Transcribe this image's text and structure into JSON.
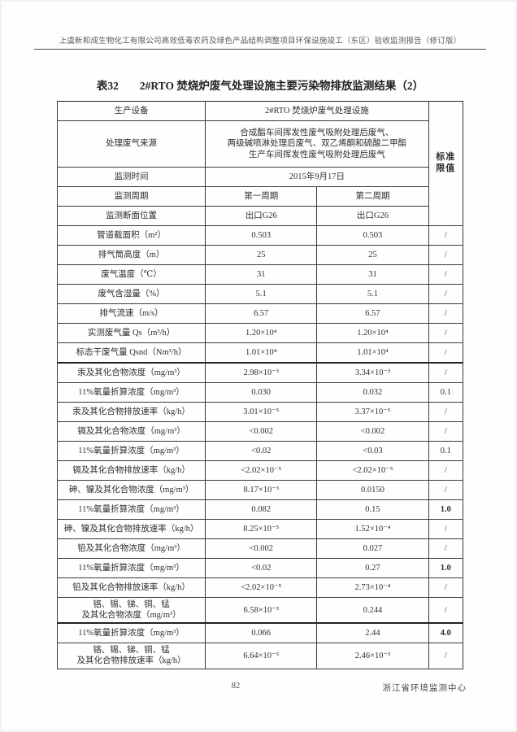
{
  "document": {
    "page_header": "上虞新和成生物化工有限公司高效低毒农药及绿色产品结构调整项目环保设施竣工（东区）验收监测报告（修订版）",
    "table_no": "表32",
    "table_title": "2#RTO 焚烧炉废气处理设施主要污染物排放监测结果（2）",
    "page_number": "82",
    "footer_org": "浙江省环境监测中心"
  },
  "table": {
    "limit_header": "标准\n限值",
    "info_rows": {
      "equipment": {
        "label": "生产设备",
        "value": "2#RTO 焚烧炉废气处理设施"
      },
      "source": {
        "label": "处理废气来源",
        "value": "合成酯车间挥发性废气吸附处理后废气、\n两级碱喷淋处理后废气、双乙烯酮和硫酸二甲酯\n生产车间挥发性废气吸附处理后废气"
      },
      "time": {
        "label": "监测时间",
        "value": "2015年9月17日"
      }
    },
    "period_row": {
      "label": "监测周期",
      "p1": "第一周期",
      "p2": "第二周期"
    },
    "position_row": {
      "label": "监测断面位置",
      "p1": "出口G26",
      "p2": "出口G26"
    },
    "data_rows": [
      {
        "label": "管道截面积（m²）",
        "p1": "0.503",
        "p2": "0.503",
        "limit": "/"
      },
      {
        "label": "排气筒高度（m）",
        "p1": "25",
        "p2": "25",
        "limit": "/"
      },
      {
        "label": "废气温度（℃）",
        "p1": "31",
        "p2": "31",
        "limit": "/"
      },
      {
        "label": "废气含湿量（%）",
        "p1": "5.1",
        "p2": "5.1",
        "limit": "/"
      },
      {
        "label": "排气流速（m/s）",
        "p1": "6.57",
        "p2": "6.57",
        "limit": "/"
      },
      {
        "label": "实测废气量 Qs（m³/h）",
        "p1": "1.20×10⁴",
        "p2": "1.20×10⁴",
        "limit": "/"
      },
      {
        "label": "标态干废气量 Qsnd（Nm³/h）",
        "p1": "1.01×10⁴",
        "p2": "1.01×10⁴",
        "limit": "/"
      },
      {
        "label": "汞及其化合物浓度（mg/m³）",
        "p1": "2.98×10⁻³",
        "p2": "3.34×10⁻³",
        "limit": "/"
      },
      {
        "label": "11%氧量折算浓度（mg/m³）",
        "p1": "0.030",
        "p2": "0.032",
        "limit": "0.1"
      },
      {
        "label": "汞及其化合物排放速率（kg/h）",
        "p1": "3.01×10⁻⁵",
        "p2": "3.37×10⁻⁵",
        "limit": "/"
      },
      {
        "label": "镉及其化合物浓度（mg/m³）",
        "p1": "<0.002",
        "p2": "<0.002",
        "limit": "/"
      },
      {
        "label": "11%氧量折算浓度（mg/m³）",
        "p1": "<0.02",
        "p2": "<0.03",
        "limit": "0.1"
      },
      {
        "label": "镉及其化合物排放速率（kg/h）",
        "p1": "<2.02×10⁻⁵",
        "p2": "<2.02×10⁻⁵",
        "limit": "/"
      },
      {
        "label": "砷、镍及其化合物浓度（mg/m³）",
        "p1": "8.17×10⁻³",
        "p2": "0.0150",
        "limit": "/"
      },
      {
        "label": "11%氧量折算浓度（mg/m³）",
        "p1": "0.082",
        "p2": "0.15",
        "limit": "1.0",
        "strong": true
      },
      {
        "label": "砷、镍及其化合物排放速率（kg/h）",
        "p1": "8.25×10⁻⁵",
        "p2": "1.52×10⁻⁴",
        "limit": "/"
      },
      {
        "label": "铅及其化合物浓度（mg/m³）",
        "p1": "<0.002",
        "p2": "0.027",
        "limit": "/"
      },
      {
        "label": "11%氧量折算浓度（mg/m³）",
        "p1": "<0.02",
        "p2": "0.27",
        "limit": "1.0",
        "strong": true
      },
      {
        "label": "铅及其化合物排放速率（kg/h）",
        "p1": "<2.02×10⁻⁵",
        "p2": "2.73×10⁻⁴",
        "limit": "/"
      },
      {
        "label": "铬、锡、锑、铜、锰\n及其化合物浓度（mg/m³）",
        "p1": "6.58×10⁻³",
        "p2": "0.244",
        "limit": "/"
      },
      {
        "label": "11%氧量折算浓度（mg/m³）",
        "p1": "0.066",
        "p2": "2.44",
        "limit": "4.0",
        "strong": true
      },
      {
        "label": "铬、锡、锑、铜、锰\n及其化合物排放速率（kg/h）",
        "p1": "6.64×10⁻⁵",
        "p2": "2.46×10⁻³",
        "limit": "/"
      }
    ]
  }
}
